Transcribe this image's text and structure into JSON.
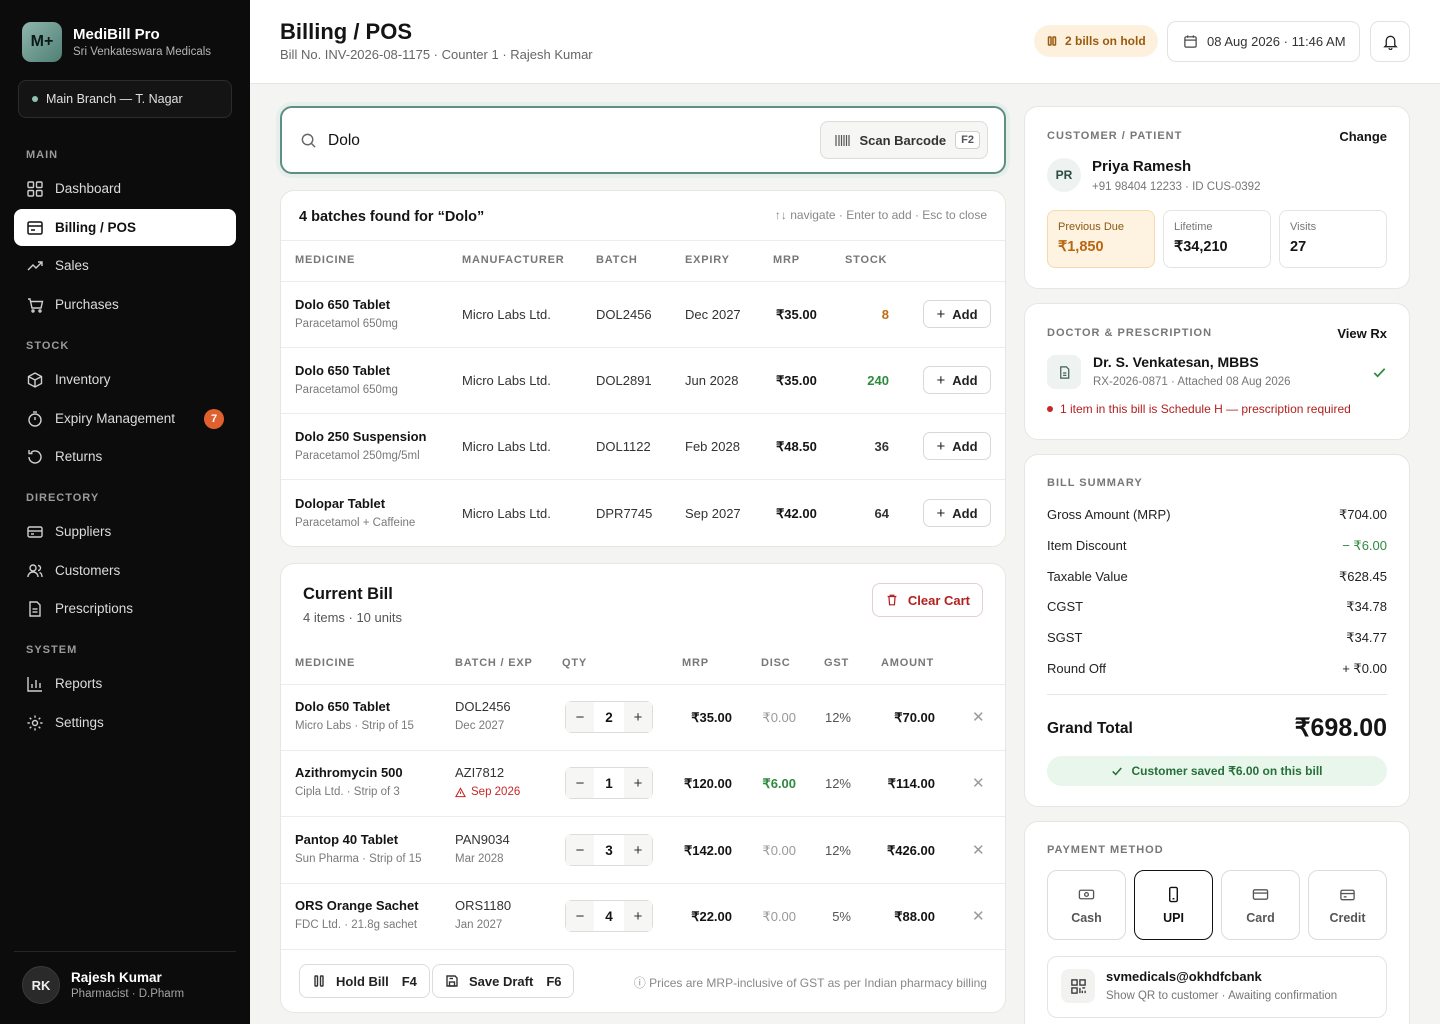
{
  "app": {
    "name": "MediBill Pro",
    "store": "Sri Venkateswara Medicals",
    "logo": "M+",
    "branch": "Main Branch — T. Nagar"
  },
  "nav": {
    "sections": {
      "main": "MAIN",
      "stock": "STOCK",
      "directory": "DIRECTORY",
      "system": "SYSTEM"
    },
    "items": [
      {
        "label": "Dashboard",
        "icon": "grid-icon"
      },
      {
        "label": "Billing / POS",
        "icon": "receipt-icon"
      },
      {
        "label": "Sales",
        "icon": "trend-icon"
      },
      {
        "label": "Purchases",
        "icon": "cart-icon"
      },
      {
        "label": "Inventory",
        "icon": "box-icon"
      },
      {
        "label": "Expiry Management",
        "icon": "timer-icon",
        "badge": "7"
      },
      {
        "label": "Returns",
        "icon": "return-icon"
      },
      {
        "label": "Suppliers",
        "icon": "card-icon"
      },
      {
        "label": "Customers",
        "icon": "users-icon"
      },
      {
        "label": "Prescriptions",
        "icon": "document-icon"
      },
      {
        "label": "Reports",
        "icon": "bar-chart-icon"
      },
      {
        "label": "Settings",
        "icon": "gear-icon"
      }
    ]
  },
  "user": {
    "initials": "RK",
    "name": "Rajesh Kumar",
    "role": "Pharmacist · D.Pharm"
  },
  "header": {
    "title": "Billing / POS",
    "subtitle": "Bill No. INV-2026-08-1175 · Counter 1 · Rajesh Kumar",
    "hold": "2 bills on hold",
    "datetime": "08 Aug 2026 · 11:46 AM"
  },
  "search": {
    "value": "Dolo",
    "scan_label": "Scan Barcode",
    "scan_key": "F2"
  },
  "results": {
    "title": "4 batches found for “Dolo”",
    "hint": "↑↓ navigate · Enter to add · Esc to close",
    "columns": [
      "MEDICINE",
      "MANUFACTURER",
      "BATCH",
      "EXPIRY",
      "MRP",
      "STOCK"
    ],
    "add_label": "Add",
    "rows": [
      {
        "name": "Dolo 650 Tablet",
        "generic": "Paracetamol 650mg",
        "mfr": "Micro Labs Ltd.",
        "batch": "DOL2456",
        "expiry": "Dec 2027",
        "mrp": "₹35.00",
        "stock": "8",
        "stock_color": "#c06a10"
      },
      {
        "name": "Dolo 650 Tablet",
        "generic": "Paracetamol 650mg",
        "mfr": "Micro Labs Ltd.",
        "batch": "DOL2891",
        "expiry": "Jun 2028",
        "mrp": "₹35.00",
        "stock": "240",
        "stock_color": "#2e8a3e"
      },
      {
        "name": "Dolo 250 Suspension",
        "generic": "Paracetamol 250mg/5ml",
        "mfr": "Micro Labs Ltd.",
        "batch": "DOL1122",
        "expiry": "Feb 2028",
        "mrp": "₹48.50",
        "stock": "36",
        "stock_color": "#333333"
      },
      {
        "name": "Dolopar Tablet",
        "generic": "Paracetamol + Caffeine",
        "mfr": "Micro Labs Ltd.",
        "batch": "DPR7745",
        "expiry": "Sep 2027",
        "mrp": "₹42.00",
        "stock": "64",
        "stock_color": "#333333"
      }
    ]
  },
  "bill": {
    "title": "Current Bill",
    "summary": "4 items · 10 units",
    "clear_label": "Clear Cart",
    "columns": [
      "MEDICINE",
      "BATCH / EXP",
      "QTY",
      "MRP",
      "DISC",
      "GST",
      "AMOUNT"
    ],
    "rows": [
      {
        "name": "Dolo 650 Tablet",
        "meta": "Micro Labs · Strip of 15",
        "batch": "DOL2456",
        "exp": "Dec 2027",
        "exp_warn": false,
        "qty": "2",
        "mrp": "₹35.00",
        "disc": "₹0.00",
        "disc_active": false,
        "gst": "12%",
        "amount": "₹70.00"
      },
      {
        "name": "Azithromycin 500",
        "meta": "Cipla Ltd. · Strip of 3",
        "batch": "AZI7812",
        "exp": "Sep 2026",
        "exp_warn": true,
        "qty": "1",
        "mrp": "₹120.00",
        "disc": "₹6.00",
        "disc_active": true,
        "gst": "12%",
        "amount": "₹114.00"
      },
      {
        "name": "Pantop 40 Tablet",
        "meta": "Sun Pharma · Strip of 15",
        "batch": "PAN9034",
        "exp": "Mar 2028",
        "exp_warn": false,
        "qty": "3",
        "mrp": "₹142.00",
        "disc": "₹0.00",
        "disc_active": false,
        "gst": "12%",
        "amount": "₹426.00"
      },
      {
        "name": "ORS Orange Sachet",
        "meta": "FDC Ltd. · 21.8g sachet",
        "batch": "ORS1180",
        "exp": "Jan 2027",
        "exp_warn": false,
        "qty": "4",
        "mrp": "₹22.00",
        "disc": "₹0.00",
        "disc_active": false,
        "gst": "5%",
        "amount": "₹88.00"
      }
    ],
    "hold_label": "Hold Bill",
    "hold_key": "F4",
    "draft_label": "Save Draft",
    "draft_key": "F6",
    "note": "ⓘ Prices are MRP-inclusive of GST as per Indian pharmacy billing"
  },
  "customer": {
    "caption": "CUSTOMER / PATIENT",
    "change": "Change",
    "initials": "PR",
    "name": "Priya Ramesh",
    "meta": "+91 98404 12233 · ID CUS-0392",
    "stats": [
      {
        "label": "Previous Due",
        "value": "₹1,850"
      },
      {
        "label": "Lifetime",
        "value": "₹34,210"
      },
      {
        "label": "Visits",
        "value": "27"
      }
    ]
  },
  "doctor": {
    "caption": "DOCTOR & PRESCRIPTION",
    "view": "View Rx",
    "name": "Dr. S. Venkatesan, MBBS",
    "meta": "RX-2026-0871 · Attached 08 Aug 2026",
    "warning": "1 item in this bill is Schedule H — prescription required"
  },
  "summary": {
    "caption": "BILL SUMMARY",
    "rows": [
      {
        "label": "Gross Amount (MRP)",
        "value": "₹704.00"
      },
      {
        "label": "Item Discount",
        "value": "− ₹6.00"
      },
      {
        "label": "Taxable Value",
        "value": "₹628.45"
      },
      {
        "label": "CGST",
        "value": "₹34.78"
      },
      {
        "label": "SGST",
        "value": "₹34.77"
      },
      {
        "label": "Round Off",
        "value": "+ ₹0.00"
      }
    ],
    "total_label": "Grand Total",
    "total": "₹698.00",
    "saved": "Customer saved ₹6.00 on this bill"
  },
  "payment": {
    "caption": "PAYMENT METHOD",
    "methods": [
      "Cash",
      "UPI",
      "Card",
      "Credit"
    ],
    "selected": "UPI",
    "upi_id": "svmedicals@okhdfcbank",
    "upi_note": "Show QR to customer · Awaiting confirmation"
  }
}
